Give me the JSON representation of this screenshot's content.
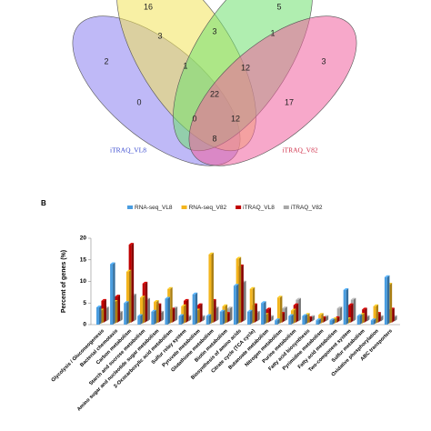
{
  "chart_data": [
    {
      "type": "venn",
      "set_labels": [
        "iTRAQ_VL8",
        "iTRAQ_V82"
      ],
      "set_colors": [
        "#8a7ff0",
        "#f2e35a",
        "#6fe06f",
        "#f0609e"
      ],
      "label_colors": [
        "#3a4bd0",
        "#d0304a"
      ],
      "regions": [
        16,
        5,
        3,
        3,
        1,
        2,
        3,
        1,
        12,
        22,
        0,
        17,
        0,
        12,
        8
      ]
    },
    {
      "type": "bar",
      "panel": "B",
      "ylabel": "Percent of genes (%)",
      "categories": [
        "Glycolysis / Gluconeogenesis",
        "Bacterial chemotaxis",
        "Carbon metabolism",
        "Starch and sucrose metabolism",
        "Amino sugar and nucleotide sugar metabolism",
        "2-Oxocarboxylic acid metabolism",
        "Sulfur relay system",
        "Pyruvate metabolism",
        "Glutathione metabolism",
        "Biotin metabolism",
        "Biosynthesis of amino acids",
        "Citrate cycle (TCA cycle)",
        "Butanoate metabolism",
        "Nitrogen metabolism",
        "Purine metabolism",
        "Fatty acid biosynthesis",
        "Pyrimidine metabolism",
        "Fatty acid metabolism",
        "Two-component system",
        "Sulfur metabolism",
        "Oxidative phosphorylation",
        "ABC transporters"
      ],
      "series": [
        {
          "name": "RNA-seq_VL8",
          "color": "#4a9de0",
          "values": [
            4,
            14,
            5,
            2,
            3,
            6,
            2,
            7,
            2,
            3,
            9,
            3,
            5,
            1,
            2,
            2,
            1,
            1,
            8,
            2,
            1,
            11
          ]
        },
        {
          "name": "RNA-seq_V82",
          "color": "#f3b51d",
          "values": [
            3,
            5,
            12,
            6,
            5,
            8,
            4,
            3,
            16,
            4,
            15,
            8,
            2,
            6,
            3,
            2,
            2,
            1,
            1,
            2,
            4,
            9
          ]
        },
        {
          "name": "iTRAQ_VL8",
          "color": "#c00000",
          "values": [
            5,
            6,
            18,
            9,
            4,
            3,
            5,
            4,
            5,
            2,
            13,
            4,
            3,
            2,
            4,
            1,
            1,
            1,
            4,
            3,
            2,
            3
          ]
        },
        {
          "name": "iTRAQ_V82",
          "color": "#a8a8a8",
          "values": [
            3,
            2,
            6,
            5,
            2,
            3,
            1,
            1,
            3,
            3,
            9,
            2,
            1,
            3,
            5,
            1,
            1,
            3,
            5,
            1,
            1,
            1
          ]
        }
      ],
      "ylim": [
        0,
        20
      ],
      "yticks": [
        0,
        5,
        10,
        15,
        20
      ]
    }
  ]
}
